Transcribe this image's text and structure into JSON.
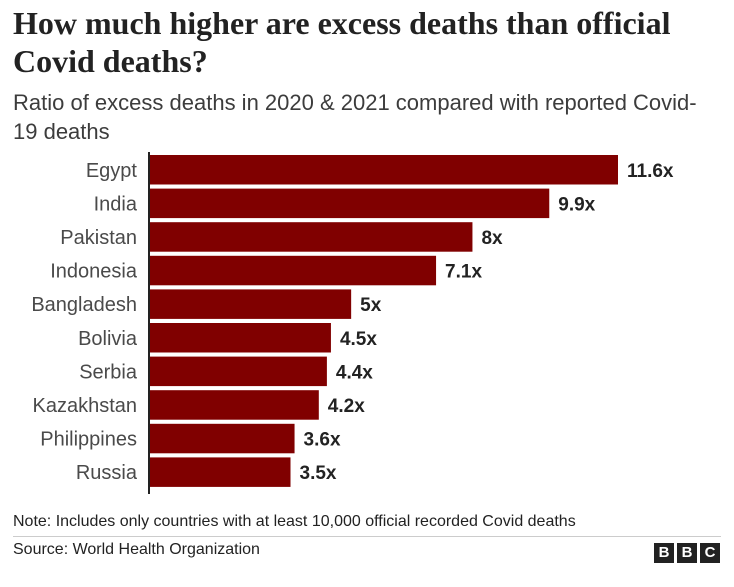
{
  "chart_data": {
    "type": "bar",
    "orientation": "horizontal",
    "title": "How much higher are excess deaths than official Covid deaths?",
    "subtitle": "Ratio of excess deaths in 2020 & 2021 compared with reported Covid-19 deaths",
    "categories": [
      "Egypt",
      "India",
      "Pakistan",
      "Indonesia",
      "Bangladesh",
      "Bolivia",
      "Serbia",
      "Kazakhstan",
      "Philippines",
      "Russia"
    ],
    "values": [
      11.6,
      9.9,
      8,
      7.1,
      5,
      4.5,
      4.4,
      4.2,
      3.6,
      3.5
    ],
    "data_labels": [
      "11.6x",
      "9.9x",
      "8x",
      "7.1x",
      "5x",
      "4.5x",
      "4.4x",
      "4.2x",
      "3.6x",
      "3.5x"
    ],
    "xlim": [
      0,
      11.6
    ],
    "bar_color": "#800000",
    "grid": false,
    "note": "Note: Includes only countries with at least 10,000 official recorded Covid deaths",
    "source": "Source: World Health Organization"
  },
  "brand": {
    "letters": [
      "B",
      "B",
      "C"
    ]
  }
}
